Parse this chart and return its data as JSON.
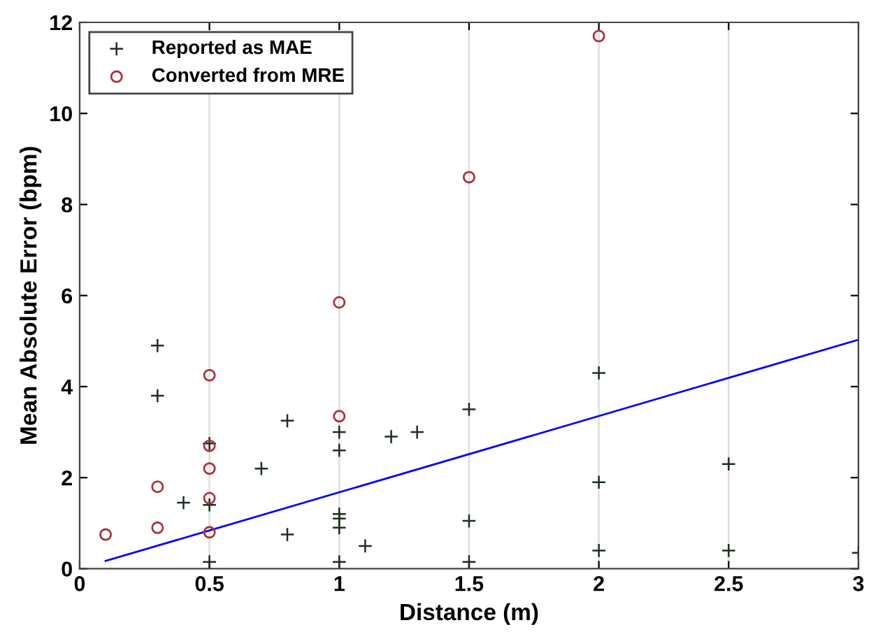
{
  "chart_data": {
    "type": "scatter",
    "xlabel": "Distance (m)",
    "ylabel": "Mean Absolute Error (bpm)",
    "xlim": [
      0,
      3
    ],
    "ylim": [
      0,
      12
    ],
    "xticks": [
      0,
      0.5,
      1,
      1.5,
      2,
      2.5,
      3
    ],
    "yticks": [
      0,
      2,
      4,
      6,
      8,
      10,
      12
    ],
    "grid": "x",
    "legend": "top left",
    "series": [
      {
        "name": "Reported as MAE",
        "marker": "cross",
        "color": "#1f2f1f",
        "x": [
          0.3,
          0.3,
          0.4,
          0.5,
          0.5,
          0.5,
          0.7,
          0.8,
          0.8,
          1,
          1,
          1,
          1,
          1,
          1,
          1.1,
          1.2,
          1.3,
          1.5,
          1.5,
          1.5,
          2,
          2,
          2,
          2.5,
          2.5,
          3
        ],
        "values": [
          4.9,
          3.8,
          1.45,
          2.75,
          1.4,
          0.15,
          2.2,
          3.25,
          0.75,
          3.0,
          2.6,
          1.2,
          1.1,
          0.9,
          0.15,
          0.5,
          2.9,
          3.0,
          3.5,
          1.05,
          0.15,
          4.3,
          1.9,
          0.4,
          2.3,
          0.4,
          0.35
        ]
      },
      {
        "name": "Converted from MRE",
        "marker": "circle",
        "color": "#a83240",
        "x": [
          0.1,
          0.3,
          0.3,
          0.5,
          0.5,
          0.5,
          0.5,
          0.5,
          1,
          1,
          1.5,
          2
        ],
        "values": [
          0.75,
          1.8,
          0.9,
          4.25,
          2.7,
          2.2,
          1.55,
          0.8,
          5.85,
          3.35,
          8.6,
          11.7
        ]
      },
      {
        "type": "line",
        "color": "#0000ff",
        "line_style": "solid",
        "x": [
          0.1,
          3
        ],
        "values": [
          0.17,
          5.03
        ]
      }
    ]
  }
}
